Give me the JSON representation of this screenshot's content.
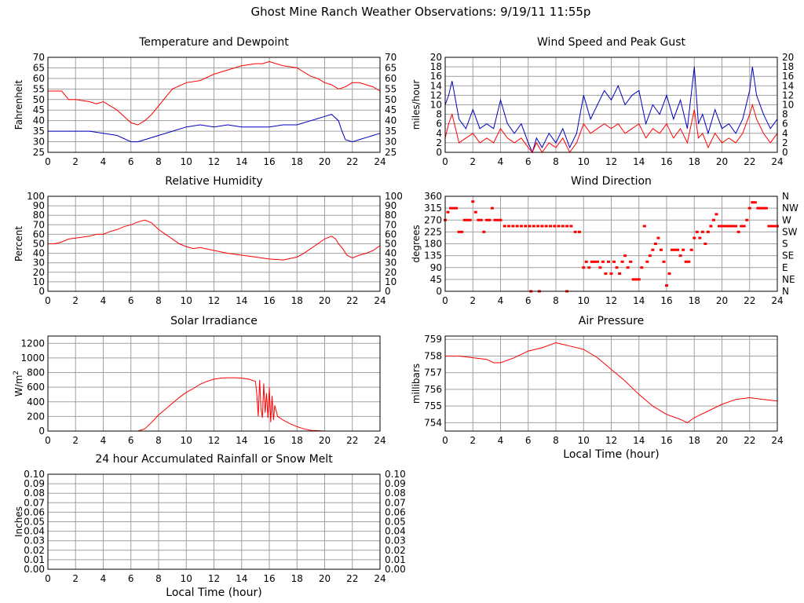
{
  "page": {
    "title": "Ghost Mine Ranch Weather Observations: 9/19/11 11:55p"
  },
  "colors": {
    "red": "#ff0000",
    "blue": "#0000c0",
    "grid": "#a0a0a0",
    "frame": "#000000"
  },
  "chart_data": [
    {
      "id": "temp",
      "type": "line",
      "title": "Temperature and Dewpoint",
      "ylabel": "Fahrenheit",
      "xlabel": "",
      "xlim": [
        0,
        24
      ],
      "ylim": [
        25,
        70
      ],
      "xticks": [
        0,
        2,
        4,
        6,
        8,
        10,
        12,
        14,
        16,
        18,
        20,
        22,
        24
      ],
      "yticks": [
        "25",
        "30",
        "35",
        "40",
        "45",
        "50",
        "55",
        "60",
        "65",
        "70"
      ],
      "right_axis": true,
      "grid": true,
      "series": [
        {
          "color": "#ff0000",
          "x": [
            0,
            0.5,
            1,
            1.5,
            2,
            3,
            3.5,
            4,
            4.5,
            5,
            5.5,
            6,
            6.5,
            7,
            7.5,
            8,
            8.5,
            9,
            10,
            11,
            12,
            13,
            14,
            15,
            15.5,
            16,
            16.5,
            17,
            18,
            19,
            19.5,
            20,
            20.5,
            21,
            21.5,
            22,
            22.5,
            23,
            23.5,
            24
          ],
          "y": [
            54,
            54,
            54,
            50,
            50,
            49,
            48,
            49,
            47,
            45,
            42,
            39,
            38,
            40,
            43,
            47,
            51,
            55,
            58,
            59,
            62,
            64,
            66,
            67,
            67,
            68,
            67,
            66,
            65,
            61,
            60,
            58,
            57,
            55,
            56,
            58,
            58,
            57,
            56,
            54
          ]
        },
        {
          "color": "#0000c0",
          "x": [
            0,
            1,
            2,
            3,
            4,
            5,
            6,
            6.5,
            7,
            8,
            9,
            10,
            11,
            12,
            13,
            14,
            15,
            16,
            17,
            18,
            19,
            19.5,
            20,
            20.5,
            21,
            21.2,
            21.5,
            22,
            22.5,
            23,
            23.5,
            24
          ],
          "y": [
            35,
            35,
            35,
            35,
            34,
            33,
            30,
            30,
            31,
            33,
            35,
            37,
            38,
            37,
            38,
            37,
            37,
            37,
            38,
            38,
            40,
            41,
            42,
            43,
            40,
            36,
            31,
            30,
            31,
            32,
            33,
            34
          ]
        }
      ]
    },
    {
      "id": "wind",
      "type": "line",
      "title": "Wind Speed and Peak Gust",
      "ylabel": "miles/hour",
      "xlabel": "",
      "xlim": [
        0,
        24
      ],
      "ylim": [
        0,
        20
      ],
      "xticks": [
        0,
        2,
        4,
        6,
        8,
        10,
        12,
        14,
        16,
        18,
        20,
        22,
        24
      ],
      "yticks": [
        "0",
        "2",
        "4",
        "6",
        "8",
        "10",
        "12",
        "14",
        "16",
        "18",
        "20"
      ],
      "right_axis": true,
      "grid": true,
      "series": [
        {
          "color": "#0000c0",
          "x": [
            0,
            0.25,
            0.5,
            0.75,
            1,
            1.5,
            2,
            2.5,
            3,
            3.5,
            4,
            4.5,
            5,
            5.5,
            6,
            6.3,
            6.6,
            7,
            7.5,
            8,
            8.5,
            9,
            9.5,
            10,
            10.5,
            11,
            11.5,
            12,
            12.5,
            13,
            13.5,
            14,
            14.5,
            15,
            15.5,
            16,
            16.5,
            17,
            17.5,
            18,
            18.3,
            18.6,
            19,
            19.5,
            20,
            20.5,
            21,
            21.5,
            22,
            22.2,
            22.5,
            23,
            23.5,
            24
          ],
          "y": [
            10,
            12,
            15,
            11,
            7,
            5,
            9,
            5,
            6,
            5,
            11,
            6,
            4,
            6,
            2,
            0,
            3,
            1,
            4,
            2,
            5,
            1,
            4,
            12,
            7,
            10,
            13,
            11,
            14,
            10,
            12,
            13,
            6,
            10,
            8,
            12,
            7,
            11,
            5,
            18,
            6,
            8,
            4,
            9,
            5,
            6,
            4,
            7,
            13,
            18,
            12,
            8,
            5,
            7
          ]
        },
        {
          "color": "#ff0000",
          "x": [
            0,
            0.25,
            0.5,
            0.75,
            1,
            1.5,
            2,
            2.5,
            3,
            3.5,
            4,
            4.5,
            5,
            5.5,
            6,
            6.3,
            6.6,
            7,
            7.5,
            8,
            8.5,
            9,
            9.5,
            10,
            10.5,
            11,
            11.5,
            12,
            12.5,
            13,
            13.5,
            14,
            14.5,
            15,
            15.5,
            16,
            16.5,
            17,
            17.5,
            18,
            18.3,
            18.6,
            19,
            19.5,
            20,
            20.5,
            21,
            21.5,
            22,
            22.2,
            22.5,
            23,
            23.5,
            24
          ],
          "y": [
            3,
            6,
            8,
            5,
            2,
            3,
            4,
            2,
            3,
            2,
            5,
            3,
            2,
            3,
            1,
            0,
            2,
            0,
            2,
            1,
            3,
            0,
            2,
            6,
            4,
            5,
            6,
            5,
            6,
            4,
            5,
            6,
            3,
            5,
            4,
            6,
            3,
            5,
            2,
            9,
            3,
            4,
            1,
            4,
            2,
            3,
            2,
            4,
            8,
            10,
            7,
            4,
            2,
            4
          ]
        }
      ]
    },
    {
      "id": "rh",
      "type": "line",
      "title": "Relative Humidity",
      "ylabel": "Percent",
      "xlabel": "",
      "xlim": [
        0,
        24
      ],
      "ylim": [
        0,
        100
      ],
      "xticks": [
        0,
        2,
        4,
        6,
        8,
        10,
        12,
        14,
        16,
        18,
        20,
        22,
        24
      ],
      "yticks": [
        "0",
        "10",
        "20",
        "30",
        "40",
        "50",
        "60",
        "70",
        "80",
        "90",
        "100"
      ],
      "right_axis": true,
      "grid": true,
      "series": [
        {
          "color": "#ff0000",
          "x": [
            0,
            0.5,
            1,
            1.5,
            2,
            2.5,
            3,
            3.5,
            4,
            4.5,
            5,
            5.5,
            6,
            6.5,
            7,
            7.5,
            8,
            8.5,
            9,
            9.5,
            10,
            10.5,
            11,
            12,
            13,
            14,
            15,
            16,
            17,
            18,
            18.5,
            19,
            19.5,
            20,
            20.5,
            20.8,
            21,
            21.3,
            21.6,
            22,
            22.5,
            23,
            23.5,
            24
          ],
          "y": [
            50,
            50,
            52,
            55,
            56,
            57,
            58,
            60,
            60,
            63,
            65,
            68,
            70,
            73,
            75,
            72,
            65,
            60,
            55,
            50,
            47,
            45,
            46,
            43,
            40,
            38,
            36,
            34,
            33,
            36,
            40,
            45,
            50,
            55,
            58,
            55,
            50,
            45,
            38,
            35,
            38,
            40,
            43,
            48
          ]
        }
      ]
    },
    {
      "id": "wdir",
      "type": "scatter",
      "title": "Wind Direction",
      "ylabel": "degrees",
      "xlabel": "",
      "xlim": [
        0,
        24
      ],
      "ylim": [
        0,
        360
      ],
      "xticks": [
        0,
        2,
        4,
        6,
        8,
        10,
        12,
        14,
        16,
        18,
        20,
        22,
        24
      ],
      "yticks": [
        "0",
        "45",
        "90",
        "135",
        "180",
        "225",
        "270",
        "315",
        "360"
      ],
      "right_labels": [
        "N",
        "NE",
        "E",
        "SE",
        "S",
        "SW",
        "W",
        "NW",
        "N"
      ],
      "grid": true,
      "series": [
        {
          "color": "#ff0000",
          "x": [
            0,
            0.2,
            0.4,
            0.6,
            0.8,
            1.0,
            1.2,
            1.4,
            1.6,
            1.8,
            2.0,
            2.2,
            2.4,
            2.6,
            2.8,
            3.0,
            3.2,
            3.4,
            3.6,
            3.8,
            4.0,
            4.3,
            4.6,
            4.9,
            5.2,
            5.5,
            5.8,
            6.1,
            6.4,
            6.7,
            7.0,
            7.3,
            7.6,
            7.9,
            8.2,
            8.5,
            8.8,
            9.1,
            9.4,
            9.7,
            10.0,
            10.2,
            10.4,
            10.6,
            10.8,
            11.0,
            11.2,
            11.4,
            11.6,
            11.8,
            12.0,
            12.2,
            12.4,
            12.6,
            12.8,
            13.0,
            13.2,
            13.4,
            13.6,
            13.8,
            14.0,
            14.2,
            14.4,
            14.6,
            14.8,
            15.0,
            15.2,
            15.4,
            15.6,
            15.8,
            16.0,
            16.2,
            16.4,
            16.6,
            16.8,
            17.0,
            17.2,
            17.4,
            17.6,
            17.8,
            18.0,
            18.2,
            18.4,
            18.6,
            18.8,
            19.0,
            19.2,
            19.4,
            19.6,
            19.8,
            20.0,
            20.2,
            20.4,
            20.6,
            20.8,
            21.0,
            21.2,
            21.4,
            21.6,
            21.8,
            22.0,
            22.2,
            22.4,
            22.6,
            22.8,
            23.0,
            23.2,
            23.4,
            23.6,
            23.8,
            24.0,
            6.2,
            6.8,
            8.8
          ],
          "y": [
            270,
            300,
            315,
            315,
            315,
            225,
            225,
            270,
            270,
            270,
            340,
            300,
            270,
            270,
            225,
            270,
            270,
            315,
            270,
            270,
            270,
            247,
            247,
            247,
            247,
            247,
            247,
            247,
            247,
            247,
            247,
            247,
            247,
            247,
            247,
            247,
            247,
            247,
            225,
            225,
            90,
            112,
            90,
            112,
            112,
            112,
            90,
            112,
            67,
            112,
            67,
            112,
            90,
            67,
            112,
            135,
            90,
            112,
            45,
            45,
            45,
            90,
            247,
            112,
            135,
            157,
            180,
            202,
            157,
            112,
            22,
            67,
            157,
            157,
            157,
            135,
            157,
            112,
            112,
            157,
            202,
            225,
            202,
            225,
            180,
            225,
            247,
            270,
            292,
            247,
            247,
            247,
            247,
            247,
            247,
            247,
            225,
            247,
            247,
            270,
            315,
            337,
            337,
            315,
            315,
            315,
            315,
            247,
            247,
            247,
            247,
            0,
            0,
            0
          ]
        }
      ]
    },
    {
      "id": "solar",
      "type": "line",
      "title": "Solar Irradiance",
      "ylabel": "W/m",
      "ylabel_sup": "2",
      "xlabel": "",
      "xlim": [
        0,
        24
      ],
      "ylim": [
        0,
        1300
      ],
      "xticks": [
        0,
        2,
        4,
        6,
        8,
        10,
        12,
        14,
        16,
        18,
        20,
        22,
        24
      ],
      "yticks": [
        "0",
        "200",
        "400",
        "600",
        "800",
        "1000",
        "1200"
      ],
      "ytick_values": [
        0,
        200,
        400,
        600,
        800,
        1000,
        1200
      ],
      "right_axis": false,
      "grid": true,
      "series": [
        {
          "color": "#ff0000",
          "x": [
            0,
            6.5,
            7,
            7.5,
            8,
            8.5,
            9,
            9.5,
            10,
            10.5,
            11,
            11.5,
            12,
            12.5,
            13,
            13.5,
            14,
            14.5,
            15,
            15.1,
            15.2,
            15.3,
            15.4,
            15.5,
            15.6,
            15.7,
            15.8,
            15.9,
            16.0,
            16.1,
            16.2,
            16.3,
            16.4,
            16.6,
            17,
            17.5,
            18,
            18.5,
            19,
            19.5,
            20,
            24
          ],
          "y": [
            0,
            0,
            30,
            120,
            220,
            300,
            380,
            460,
            530,
            580,
            640,
            680,
            710,
            725,
            730,
            730,
            725,
            710,
            680,
            500,
            200,
            700,
            300,
            180,
            650,
            250,
            520,
            180,
            600,
            120,
            480,
            150,
            350,
            200,
            150,
            100,
            60,
            30,
            10,
            5,
            0,
            0
          ]
        }
      ]
    },
    {
      "id": "pressure",
      "type": "line",
      "title": "Air Pressure",
      "ylabel": "millibars",
      "xlabel": "Local Time (hour)",
      "xlim": [
        0,
        24
      ],
      "ylim": [
        753.5,
        759.2
      ],
      "xticks": [
        0,
        2,
        4,
        6,
        8,
        10,
        12,
        14,
        16,
        18,
        20,
        22,
        24
      ],
      "yticks": [
        "754",
        "755",
        "756",
        "757",
        "758",
        "759"
      ],
      "ytick_values": [
        754,
        755,
        756,
        757,
        758,
        759
      ],
      "right_axis": false,
      "grid": true,
      "series": [
        {
          "color": "#ff0000",
          "x": [
            0,
            1,
            2,
            3,
            3.5,
            4,
            5,
            6,
            7,
            8,
            8.5,
            9,
            10,
            11,
            12,
            13,
            14,
            15,
            16,
            17,
            17.5,
            18,
            19,
            20,
            21,
            22,
            23,
            24
          ],
          "y": [
            758.0,
            758.0,
            757.9,
            757.8,
            757.6,
            757.6,
            757.9,
            758.3,
            758.5,
            758.8,
            758.7,
            758.6,
            758.4,
            757.9,
            757.2,
            756.5,
            755.7,
            755.0,
            754.5,
            754.2,
            754.0,
            754.3,
            754.7,
            755.1,
            755.4,
            755.5,
            755.4,
            755.3
          ]
        }
      ]
    },
    {
      "id": "rain",
      "type": "line",
      "title": "24 hour Accumulated Rainfall or Snow Melt",
      "ylabel": "Inches",
      "xlabel": "Local Time (hour)",
      "xlim": [
        0,
        24
      ],
      "ylim": [
        0,
        0.1
      ],
      "xticks": [
        0,
        2,
        4,
        6,
        8,
        10,
        12,
        14,
        16,
        18,
        20,
        22,
        24
      ],
      "yticks": [
        "0.00",
        "0.01",
        "0.02",
        "0.03",
        "0.04",
        "0.05",
        "0.06",
        "0.07",
        "0.08",
        "0.09",
        "0.10"
      ],
      "right_axis": true,
      "grid": true,
      "series": [
        {
          "color": "#ff0000",
          "x": [
            0,
            24
          ],
          "y": [
            0,
            0
          ]
        }
      ]
    }
  ]
}
